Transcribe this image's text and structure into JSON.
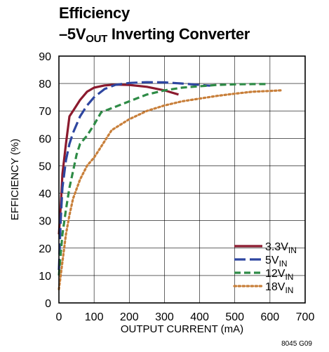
{
  "figure": {
    "title_line1": "Efficiency",
    "title_line2_prefix": "–5V",
    "title_line2_sub": "OUT",
    "title_line2_suffix": " Inverting Converter",
    "figure_id": "8045 G09"
  },
  "chart_data": {
    "type": "line",
    "title": "Efficiency –5VOUT Inverting Converter",
    "xlabel": "OUTPUT CURRENT (mA)",
    "ylabel": "EFFICIENCY (%)",
    "xlim": [
      0,
      700
    ],
    "ylim": [
      0,
      90
    ],
    "xticks": [
      0,
      100,
      200,
      300,
      400,
      500,
      600,
      700
    ],
    "yticks": [
      0,
      10,
      20,
      30,
      40,
      50,
      60,
      70,
      80,
      90
    ],
    "grid": true,
    "legend_position": "bottom-right",
    "series": [
      {
        "name": "3.3VIN",
        "label_main": "3.3V",
        "label_sub": "IN",
        "color": "#8b1a2e",
        "dash": "solid",
        "x": [
          0,
          5,
          10,
          20,
          30,
          40,
          60,
          80,
          100,
          130,
          160,
          200,
          250,
          300,
          340
        ],
        "y": [
          25,
          35,
          47,
          58,
          68,
          70,
          74,
          77,
          78.5,
          79.3,
          79.6,
          79.5,
          78.8,
          77.5,
          76
        ]
      },
      {
        "name": "5VIN",
        "label_main": "5V",
        "label_sub": "IN",
        "color": "#2e46a0",
        "dash": "long-dash",
        "x": [
          0,
          5,
          10,
          20,
          30,
          40,
          60,
          80,
          100,
          130,
          160,
          200,
          250,
          300,
          350,
          400,
          430
        ],
        "y": [
          12,
          30,
          42,
          52,
          58,
          62,
          68,
          72,
          75,
          78,
          79.5,
          80.2,
          80.5,
          80.4,
          80,
          79.5,
          79.2
        ]
      },
      {
        "name": "12VIN",
        "label_main": "12V",
        "label_sub": "IN",
        "color": "#2e8b46",
        "dash": "dash",
        "x": [
          0,
          5,
          10,
          20,
          30,
          40,
          50,
          60,
          80,
          100,
          120,
          150,
          200,
          250,
          300,
          350,
          400,
          450,
          500,
          550,
          590
        ],
        "y": [
          10,
          18,
          25,
          34,
          42,
          48,
          54,
          58,
          61,
          65,
          69.5,
          71,
          73.5,
          76,
          77.5,
          78.5,
          79,
          79.5,
          79.7,
          79.8,
          79.8
        ]
      },
      {
        "name": "18VIN",
        "label_main": "18V",
        "label_sub": "IN",
        "color": "#c87f3a",
        "dash": "dot",
        "x": [
          0,
          10,
          20,
          30,
          40,
          60,
          80,
          100,
          120,
          150,
          200,
          250,
          300,
          350,
          400,
          450,
          500,
          550,
          600,
          630
        ],
        "y": [
          5,
          15,
          25,
          32,
          38,
          45,
          50,
          53,
          57,
          63,
          67,
          70,
          72,
          73.5,
          74.5,
          75.5,
          76.3,
          77,
          77.3,
          77.5
        ]
      }
    ]
  }
}
